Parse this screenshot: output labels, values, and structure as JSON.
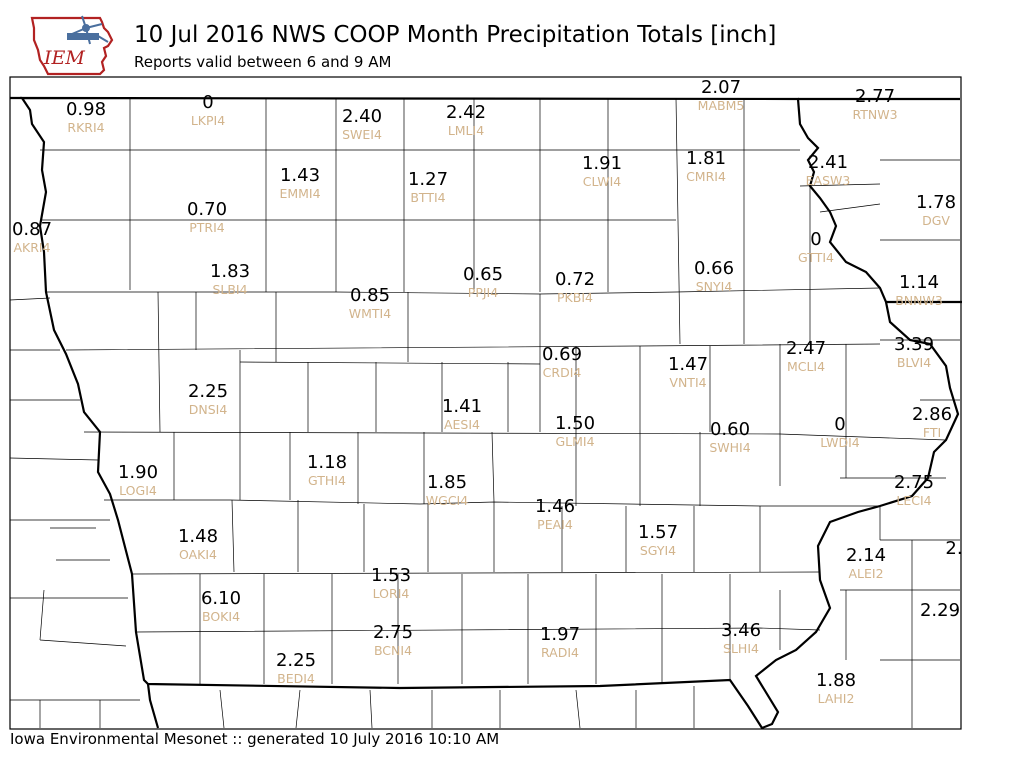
{
  "header": {
    "title": "10 Jul 2016 NWS COOP Month Precipitation Totals [inch]",
    "subtitle": "Reports valid between 6 and 9 AM",
    "logo_text": "IEM"
  },
  "footer": {
    "text": "Iowa Environmental Mesonet :: generated 10 July 2016 10:10 AM"
  },
  "colors": {
    "value_text": "#000000",
    "station_text": "#d2b48c",
    "logo_state": "#b22222",
    "logo_windmill": "#4a6f9e"
  },
  "stations": [
    {
      "id": "RKRI4",
      "value": "0.98"
    },
    {
      "id": "LKPI4",
      "value": "0"
    },
    {
      "id": "SWEI4",
      "value": "2.40"
    },
    {
      "id": "LMLI4",
      "value": "2.42"
    },
    {
      "id": "MABM5",
      "value": "2.07"
    },
    {
      "id": "RTNW3",
      "value": "2.77"
    },
    {
      "id": "CLWI4",
      "value": "1.91"
    },
    {
      "id": "CMRI4",
      "value": "1.81"
    },
    {
      "id": "EASW3",
      "value": "2.41"
    },
    {
      "id": "EMMI4",
      "value": "1.43"
    },
    {
      "id": "BTTI4",
      "value": "1.27"
    },
    {
      "id": "DGV",
      "value": "1.78"
    },
    {
      "id": "PTRI4",
      "value": "0.70"
    },
    {
      "id": "AKRI4",
      "value": "0.87"
    },
    {
      "id": "GTTI4",
      "value": "0"
    },
    {
      "id": "SLBI4",
      "value": "1.83"
    },
    {
      "id": "PPJI4",
      "value": "0.65"
    },
    {
      "id": "PKBI4",
      "value": "0.72"
    },
    {
      "id": "SNYI4",
      "value": "0.66"
    },
    {
      "id": "BNNW3",
      "value": "1.14"
    },
    {
      "id": "WMTI4",
      "value": "0.85"
    },
    {
      "id": "CRDI4",
      "value": "0.69"
    },
    {
      "id": "MCLI4",
      "value": "2.47"
    },
    {
      "id": "BLVI4",
      "value": "3.39"
    },
    {
      "id": "VNTI4",
      "value": "1.47"
    },
    {
      "id": "DNSI4",
      "value": "2.25"
    },
    {
      "id": "AESI4",
      "value": "1.41"
    },
    {
      "id": "GLMI4",
      "value": "1.50"
    },
    {
      "id": "SWHI4",
      "value": "0.60"
    },
    {
      "id": "LWDI4",
      "value": "0"
    },
    {
      "id": "FTI",
      "value": "2.86"
    },
    {
      "id": "LOGI4",
      "value": "1.90"
    },
    {
      "id": "GTHI4",
      "value": "1.18"
    },
    {
      "id": "WGCI4",
      "value": "1.85"
    },
    {
      "id": "LECI4",
      "value": "2.75"
    },
    {
      "id": "PEAI4",
      "value": "1.46"
    },
    {
      "id": "OAKI4",
      "value": "1.48"
    },
    {
      "id": "SGYI4",
      "value": "1.57"
    },
    {
      "id": "ALEI2",
      "value": "2.14"
    },
    {
      "id": "",
      "value": "2."
    },
    {
      "id": "LORI4",
      "value": "1.53"
    },
    {
      "id": "BOKI4",
      "value": "6.10"
    },
    {
      "id": "",
      "value": "2.29"
    },
    {
      "id": "BCNI4",
      "value": "2.75"
    },
    {
      "id": "RADI4",
      "value": "1.97"
    },
    {
      "id": "SLHI4",
      "value": "3.46"
    },
    {
      "id": "BEDI4",
      "value": "2.25"
    },
    {
      "id": "LAHI2",
      "value": "1.88"
    }
  ]
}
